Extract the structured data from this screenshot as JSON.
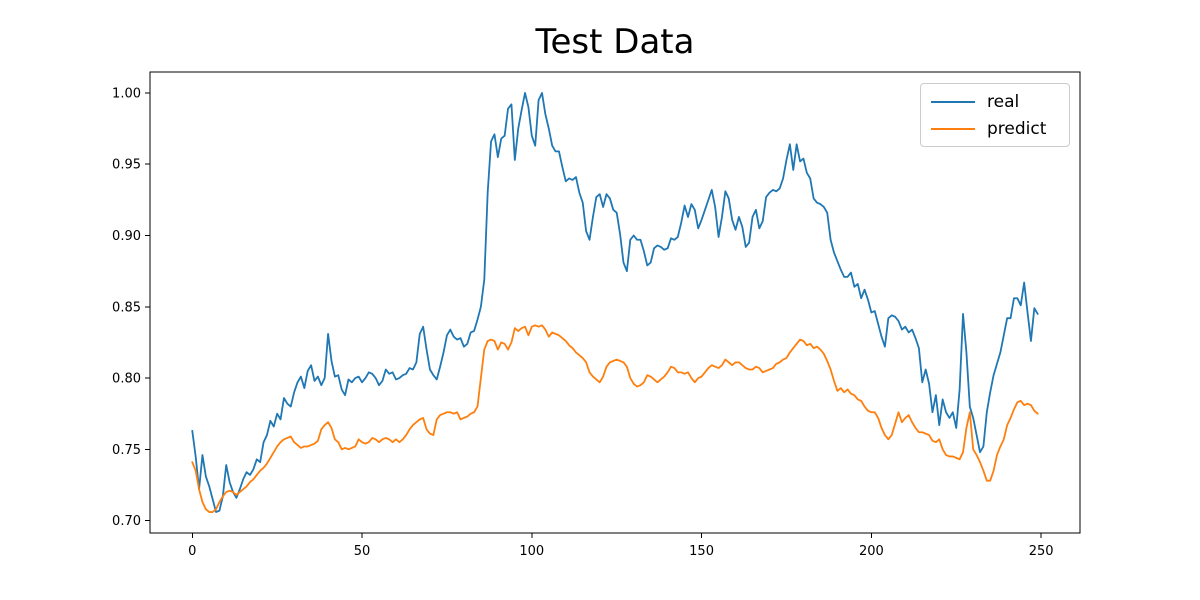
{
  "chart_data": {
    "type": "line",
    "title": "Test Data",
    "xlabel": "",
    "ylabel": "",
    "grid": false,
    "legend_position": "upper right",
    "background_color": "#ffffff",
    "axis_color": "#000000",
    "x_start": 0,
    "x_step": 1,
    "xlim": [
      -12.45,
      261.45
    ],
    "ylim": [
      0.6913,
      1.0147
    ],
    "x_ticks": [
      0,
      50,
      100,
      150,
      200,
      250
    ],
    "x_tick_labels": [
      "0",
      "50",
      "100",
      "150",
      "200",
      "250"
    ],
    "y_ticks": [
      0.7,
      0.75,
      0.8,
      0.85,
      0.9,
      0.95,
      1.0
    ],
    "y_tick_labels": [
      "0.70",
      "0.75",
      "0.80",
      "0.85",
      "0.90",
      "0.95",
      "1.00"
    ],
    "series": [
      {
        "name": "real",
        "color": "#1f77b4",
        "values": [
          0.763,
          0.745,
          0.722,
          0.746,
          0.731,
          0.724,
          0.715,
          0.706,
          0.707,
          0.717,
          0.739,
          0.727,
          0.72,
          0.716,
          0.722,
          0.729,
          0.734,
          0.732,
          0.736,
          0.743,
          0.741,
          0.755,
          0.76,
          0.77,
          0.766,
          0.775,
          0.771,
          0.786,
          0.782,
          0.78,
          0.79,
          0.797,
          0.801,
          0.793,
          0.805,
          0.809,
          0.798,
          0.801,
          0.795,
          0.8,
          0.831,
          0.812,
          0.801,
          0.802,
          0.792,
          0.788,
          0.799,
          0.797,
          0.8,
          0.801,
          0.797,
          0.8,
          0.804,
          0.803,
          0.8,
          0.795,
          0.798,
          0.806,
          0.803,
          0.804,
          0.799,
          0.8,
          0.802,
          0.803,
          0.807,
          0.806,
          0.811,
          0.831,
          0.836,
          0.82,
          0.806,
          0.802,
          0.799,
          0.808,
          0.818,
          0.83,
          0.834,
          0.829,
          0.827,
          0.828,
          0.822,
          0.824,
          0.832,
          0.833,
          0.841,
          0.85,
          0.869,
          0.93,
          0.966,
          0.971,
          0.955,
          0.968,
          0.97,
          0.989,
          0.992,
          0.953,
          0.975,
          0.988,
          1.0,
          0.99,
          0.97,
          0.963,
          0.995,
          1.0,
          0.985,
          0.975,
          0.963,
          0.959,
          0.959,
          0.948,
          0.938,
          0.94,
          0.939,
          0.941,
          0.93,
          0.923,
          0.903,
          0.897,
          0.913,
          0.927,
          0.929,
          0.92,
          0.929,
          0.926,
          0.918,
          0.916,
          0.901,
          0.881,
          0.875,
          0.897,
          0.9,
          0.897,
          0.897,
          0.889,
          0.879,
          0.881,
          0.891,
          0.893,
          0.892,
          0.89,
          0.891,
          0.898,
          0.897,
          0.899,
          0.909,
          0.921,
          0.913,
          0.922,
          0.918,
          0.905,
          0.911,
          0.918,
          0.925,
          0.932,
          0.92,
          0.899,
          0.913,
          0.931,
          0.926,
          0.911,
          0.904,
          0.913,
          0.906,
          0.892,
          0.895,
          0.913,
          0.918,
          0.905,
          0.91,
          0.927,
          0.93,
          0.932,
          0.931,
          0.933,
          0.94,
          0.953,
          0.964,
          0.946,
          0.964,
          0.952,
          0.954,
          0.944,
          0.94,
          0.926,
          0.923,
          0.922,
          0.92,
          0.916,
          0.897,
          0.888,
          0.882,
          0.876,
          0.871,
          0.871,
          0.874,
          0.864,
          0.866,
          0.856,
          0.862,
          0.855,
          0.846,
          0.847,
          0.838,
          0.829,
          0.822,
          0.842,
          0.844,
          0.843,
          0.84,
          0.834,
          0.836,
          0.832,
          0.834,
          0.828,
          0.821,
          0.797,
          0.806,
          0.796,
          0.776,
          0.788,
          0.767,
          0.785,
          0.776,
          0.772,
          0.776,
          0.765,
          0.792,
          0.845,
          0.818,
          0.78,
          0.772,
          0.76,
          0.748,
          0.752,
          0.776,
          0.79,
          0.802,
          0.81,
          0.818,
          0.83,
          0.842,
          0.842,
          0.856,
          0.856,
          0.851,
          0.867,
          0.846,
          0.826,
          0.849,
          0.845
        ]
      },
      {
        "name": "predict",
        "color": "#ff7f0e",
        "values": [
          0.741,
          0.735,
          0.722,
          0.713,
          0.708,
          0.706,
          0.706,
          0.708,
          0.713,
          0.717,
          0.72,
          0.721,
          0.72,
          0.718,
          0.72,
          0.722,
          0.724,
          0.727,
          0.729,
          0.732,
          0.735,
          0.737,
          0.74,
          0.744,
          0.748,
          0.752,
          0.755,
          0.757,
          0.758,
          0.759,
          0.755,
          0.753,
          0.751,
          0.752,
          0.752,
          0.753,
          0.754,
          0.756,
          0.764,
          0.767,
          0.769,
          0.765,
          0.757,
          0.755,
          0.75,
          0.751,
          0.75,
          0.751,
          0.752,
          0.757,
          0.755,
          0.754,
          0.755,
          0.758,
          0.757,
          0.755,
          0.757,
          0.758,
          0.757,
          0.755,
          0.757,
          0.755,
          0.757,
          0.76,
          0.764,
          0.767,
          0.769,
          0.771,
          0.772,
          0.764,
          0.761,
          0.76,
          0.771,
          0.774,
          0.775,
          0.776,
          0.776,
          0.775,
          0.776,
          0.771,
          0.772,
          0.773,
          0.775,
          0.776,
          0.78,
          0.8,
          0.82,
          0.826,
          0.827,
          0.826,
          0.82,
          0.825,
          0.824,
          0.82,
          0.825,
          0.835,
          0.833,
          0.835,
          0.836,
          0.83,
          0.836,
          0.837,
          0.836,
          0.837,
          0.834,
          0.829,
          0.832,
          0.831,
          0.83,
          0.828,
          0.826,
          0.823,
          0.821,
          0.818,
          0.816,
          0.814,
          0.811,
          0.804,
          0.801,
          0.799,
          0.797,
          0.801,
          0.808,
          0.811,
          0.812,
          0.813,
          0.812,
          0.811,
          0.808,
          0.8,
          0.796,
          0.794,
          0.795,
          0.797,
          0.802,
          0.801,
          0.799,
          0.797,
          0.799,
          0.801,
          0.804,
          0.808,
          0.807,
          0.804,
          0.804,
          0.803,
          0.804,
          0.8,
          0.797,
          0.8,
          0.801,
          0.804,
          0.807,
          0.809,
          0.808,
          0.807,
          0.809,
          0.813,
          0.811,
          0.809,
          0.811,
          0.811,
          0.809,
          0.807,
          0.806,
          0.806,
          0.808,
          0.807,
          0.804,
          0.805,
          0.806,
          0.807,
          0.81,
          0.811,
          0.813,
          0.814,
          0.818,
          0.821,
          0.824,
          0.827,
          0.826,
          0.823,
          0.824,
          0.821,
          0.822,
          0.82,
          0.817,
          0.812,
          0.806,
          0.798,
          0.791,
          0.793,
          0.79,
          0.792,
          0.789,
          0.788,
          0.785,
          0.784,
          0.78,
          0.777,
          0.776,
          0.776,
          0.772,
          0.765,
          0.76,
          0.757,
          0.76,
          0.768,
          0.776,
          0.769,
          0.772,
          0.774,
          0.769,
          0.765,
          0.762,
          0.762,
          0.761,
          0.76,
          0.756,
          0.755,
          0.757,
          0.75,
          0.746,
          0.745,
          0.745,
          0.744,
          0.743,
          0.748,
          0.765,
          0.776,
          0.75,
          0.746,
          0.741,
          0.735,
          0.728,
          0.728,
          0.735,
          0.746,
          0.752,
          0.757,
          0.767,
          0.772,
          0.778,
          0.783,
          0.784,
          0.781,
          0.782,
          0.781,
          0.777,
          0.775
        ]
      }
    ]
  }
}
